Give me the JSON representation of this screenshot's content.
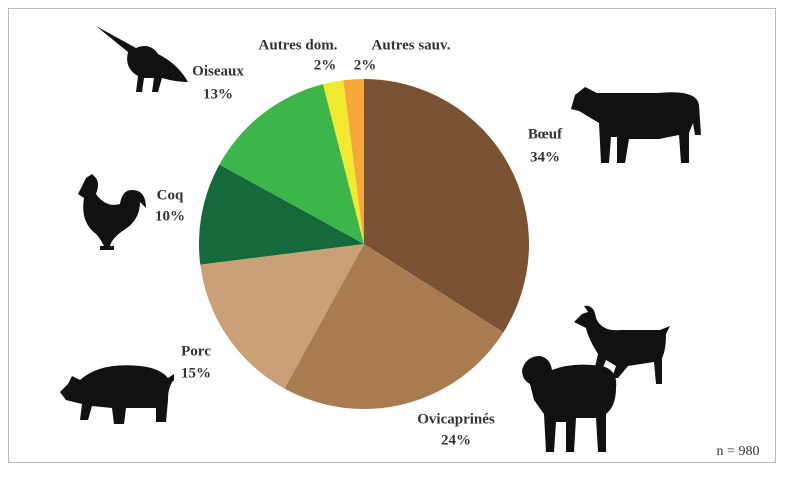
{
  "chart_data": {
    "type": "pie",
    "categories": [
      "Bœuf",
      "Ovicaprinés",
      "Porc",
      "Coq",
      "Oiseaux",
      "Autres dom.",
      "Autres sauv."
    ],
    "values": [
      34,
      24,
      15,
      10,
      13,
      2,
      2
    ],
    "value_labels": [
      "34%",
      "24%",
      "15%",
      "10%",
      "13%",
      "2%",
      "2%"
    ],
    "colors": [
      "#7b5133",
      "#a87c50",
      "#c9a077",
      "#146a3a",
      "#3db54a",
      "#f3ea30",
      "#f7a83a"
    ],
    "annotation": "n = 980"
  }
}
